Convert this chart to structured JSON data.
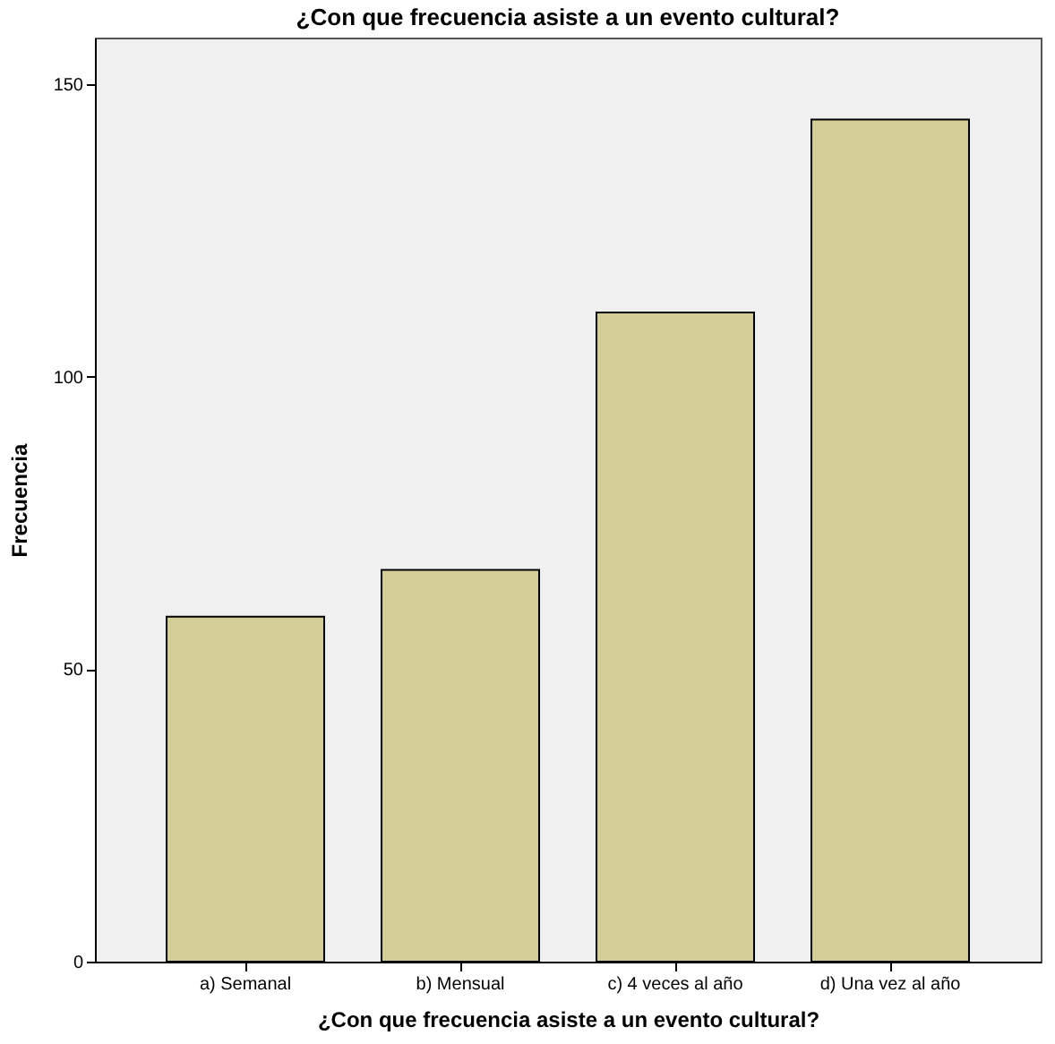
{
  "chart_data": {
    "type": "bar",
    "title": "¿Con que frecuencia asiste a un evento cultural?",
    "xlabel": "¿Con que frecuencia asiste a un evento cultural?",
    "ylabel": "Frecuencia",
    "categories": [
      "a) Semanal",
      "b) Mensual",
      "c) 4 veces al año",
      "d) Una vez al año"
    ],
    "values": [
      59,
      67,
      111,
      144
    ],
    "color": "#d3ce98",
    "ylim": [
      0,
      158
    ],
    "yticks": [
      0,
      50,
      100,
      150
    ],
    "grid": false
  }
}
